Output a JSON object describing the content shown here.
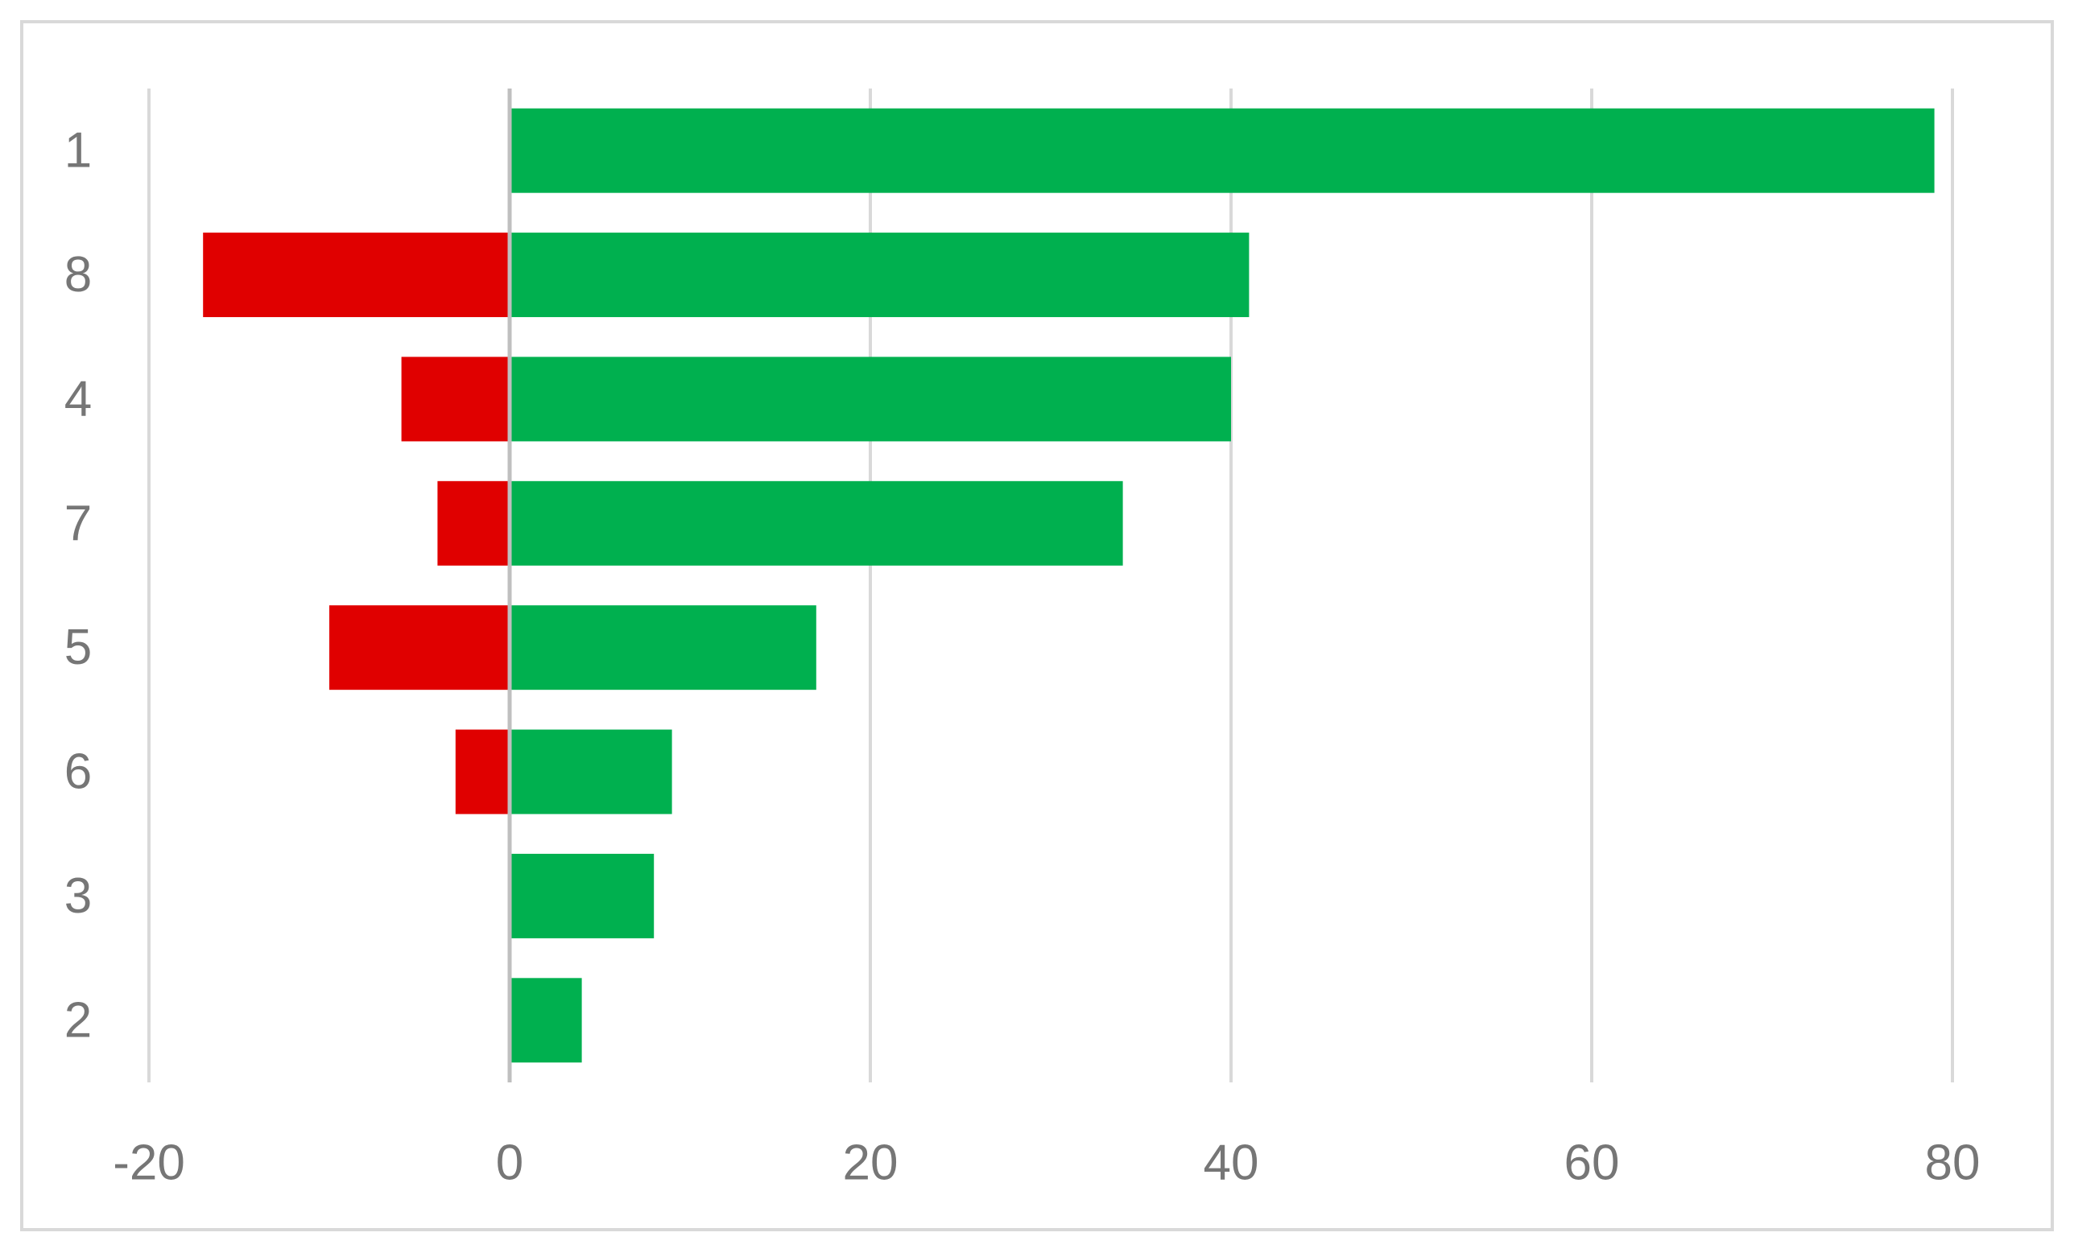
{
  "chart_data": {
    "type": "bar",
    "orientation": "horizontal",
    "stacked": true,
    "categories": [
      "1",
      "8",
      "4",
      "7",
      "5",
      "6",
      "3",
      "2"
    ],
    "series": [
      {
        "color": "#00B04F",
        "values": [
          79,
          41,
          40,
          34,
          17,
          9,
          8,
          4
        ]
      },
      {
        "color": "#E00000",
        "values": [
          0,
          -17,
          -6,
          -4,
          -10,
          -3,
          0,
          0
        ]
      }
    ],
    "xlim": [
      -20,
      80
    ],
    "xticks": [
      -20,
      0,
      20,
      40,
      60,
      80
    ],
    "xtick_labels": [
      "-20",
      "0",
      "20",
      "40",
      "60",
      "80"
    ],
    "grid": true,
    "legend": "none",
    "colors": {
      "grid": "#d9d9d9",
      "zero_axis": "#bfbfbf",
      "frame": "#d9d9d9",
      "text": "#767676"
    }
  }
}
